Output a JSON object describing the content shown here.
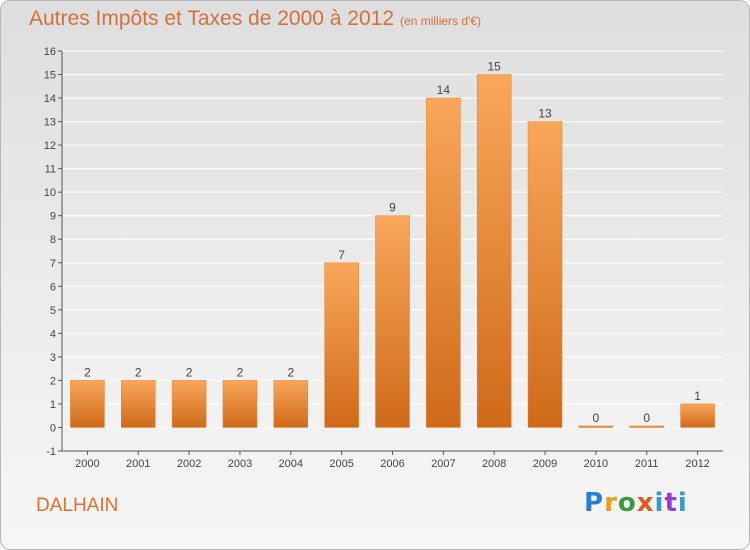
{
  "header": {
    "title": "Autres Impôts et Taxes de 2000 à 2012",
    "unit": "(en milliers d'€)"
  },
  "footer": {
    "commune": "DALHAIN",
    "logo": "Proxiti"
  },
  "colors": {
    "bar_top": "#f9a75a",
    "bar_bottom": "#cf6a1a",
    "grid": "#ffffff",
    "axis": "#555555",
    "text": "#444444"
  },
  "chart_data": {
    "type": "bar",
    "title": "Autres Impôts et Taxes de 2000 à 2012",
    "subtitle": "(en milliers d'€)",
    "categories": [
      "2000",
      "2001",
      "2002",
      "2003",
      "2004",
      "2005",
      "2006",
      "2007",
      "2008",
      "2009",
      "2010",
      "2011",
      "2012"
    ],
    "values": [
      2,
      2,
      2,
      2,
      2,
      7,
      9,
      14,
      15,
      13,
      0,
      0,
      1
    ],
    "data_labels": [
      "2",
      "2",
      "2",
      "2",
      "2",
      "7",
      "9",
      "14",
      "15",
      "13",
      "0",
      "0",
      "1"
    ],
    "y_ticks": [
      "-1",
      "0",
      "1",
      "2",
      "3",
      "4",
      "5",
      "6",
      "7",
      "8",
      "9",
      "10",
      "11",
      "12",
      "13",
      "14",
      "15",
      "16"
    ],
    "ylim": [
      -1,
      16
    ],
    "xlabel": "",
    "ylabel": "",
    "grid": true,
    "legend": "none"
  }
}
